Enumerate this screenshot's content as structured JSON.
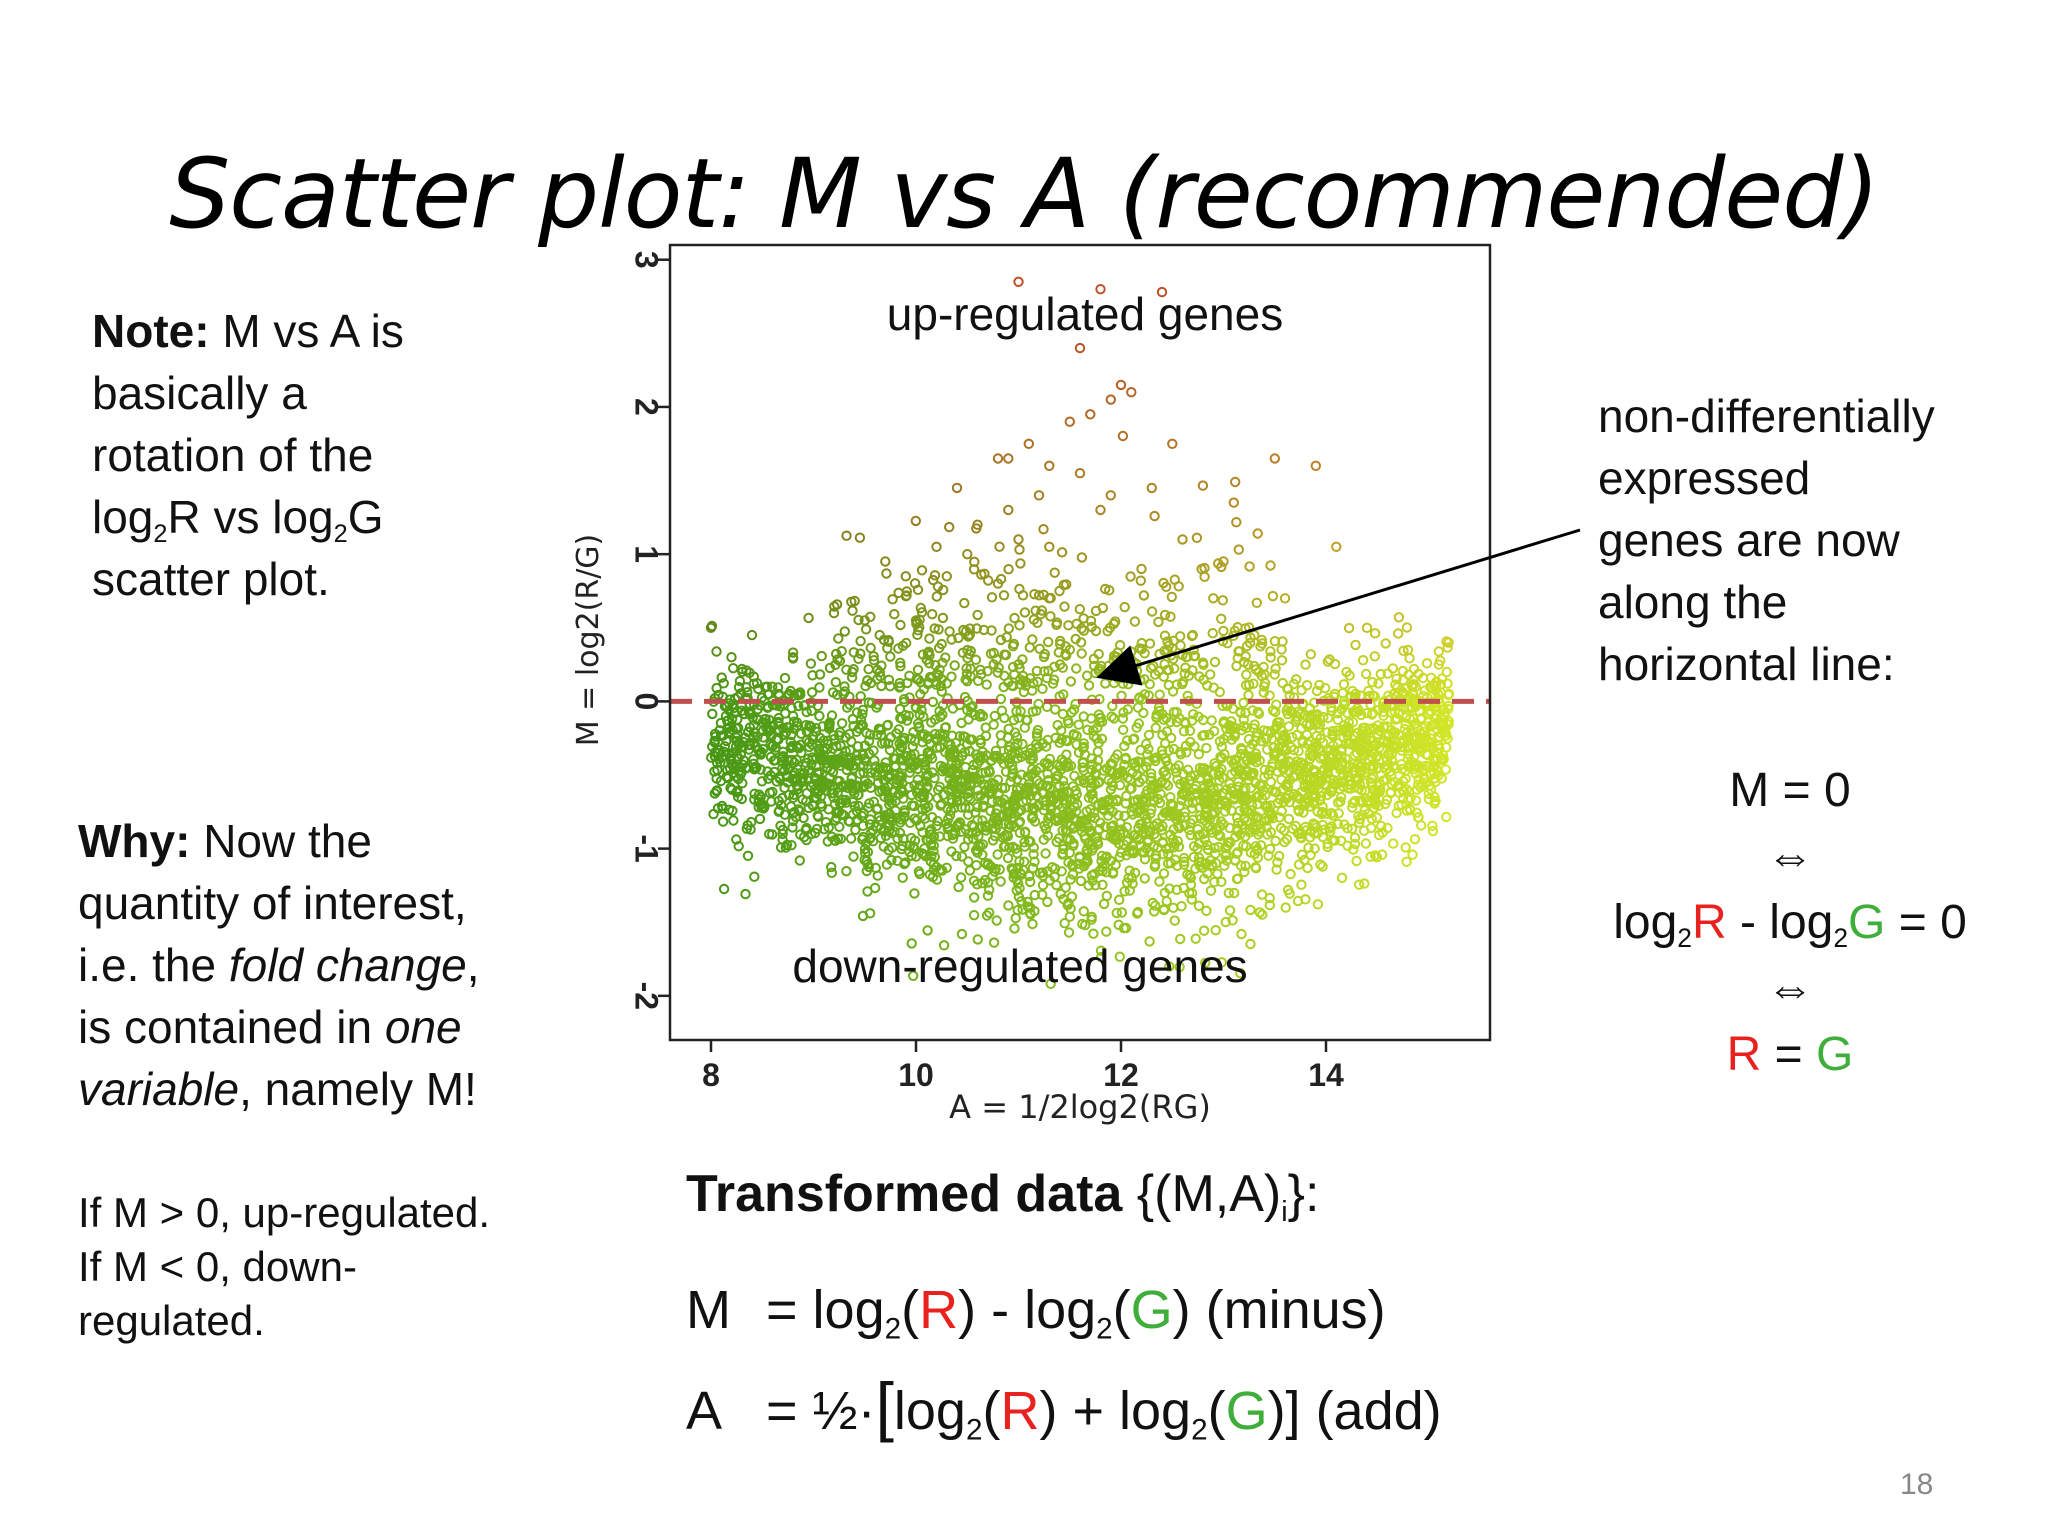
{
  "slide": {
    "title": "Scatter plot: M vs A (recommended)",
    "page_number": "18"
  },
  "note": {
    "label": "Note:",
    "line1": "M vs A is",
    "line2": "basically a",
    "line3": "rotation of the",
    "line4_a": "log",
    "line4_sub1": "2",
    "line4_b": "R vs log",
    "line4_sub2": "2",
    "line4_c": "G",
    "line5": "scatter plot."
  },
  "why": {
    "label": "Why:",
    "line1": "Now the",
    "line2": "quantity of interest,",
    "line3_a": "i.e. the ",
    "line3_em": "fold change",
    "line3_b": ",",
    "line4_a": "is contained in ",
    "line4_em": "one",
    "line5_em": "variable",
    "line5_b": ", namely M!"
  },
  "rule": {
    "line1": "If M > 0, up-regulated.",
    "line2": "If M < 0, down-",
    "line3": "regulated."
  },
  "callout": {
    "line1": "non-differentially",
    "line2": "expressed",
    "line3": "genes are now",
    "line4": "along the",
    "line5": "horizontal line:",
    "eq1": "M = 0",
    "iff": "⇔",
    "eq2_a": "log",
    "eq2_sub1": "2",
    "eq2_r": "R",
    "eq2_b": " - log",
    "eq2_sub2": "2",
    "eq2_g": "G",
    "eq2_c": " = 0",
    "eq3_r": "R",
    "eq3_eq": " = ",
    "eq3_g": "G"
  },
  "transformed": {
    "label": "Transformed data",
    "set_a": " {(M,A)",
    "set_sub": "i",
    "set_b": "}:",
    "m_lhs": "M",
    "m_a": "= log",
    "m_sub1": "2",
    "m_b": "(",
    "m_r": "R",
    "m_c": ") - log",
    "m_sub2": "2",
    "m_d": "(",
    "m_g": "G",
    "m_e": ") (minus)",
    "a_lhs": "A",
    "a_a": "= ½·",
    "a_bracket": "[",
    "a_b": "log",
    "a_sub1": "2",
    "a_c": "(",
    "a_r": "R",
    "a_d": ") + log",
    "a_sub2": "2",
    "a_e": "(",
    "a_g": "G",
    "a_f": ")] (add)"
  },
  "colors": {
    "red": "#e8231f",
    "green": "#3fae3a",
    "zero_line": "#c0504d"
  },
  "chart_data": {
    "type": "scatter",
    "xlabel": "A = 1/2log2(RG)",
    "ylabel": "M = log2(R/G)",
    "xlim": [
      7.6,
      15.6
    ],
    "ylim": [
      -2.3,
      3.1
    ],
    "xticks": [
      "8",
      "10",
      "12",
      "14"
    ],
    "yticks": [
      "-2",
      "-1",
      "0",
      "1",
      "2",
      "3"
    ],
    "reference_line": {
      "y": 0,
      "style": "dashed"
    },
    "annotations": {
      "up": "up-regulated genes",
      "down": "down-regulated genes"
    },
    "points": [
      [
        11.0,
        2.85
      ],
      [
        11.8,
        2.8
      ],
      [
        12.4,
        2.78
      ],
      [
        11.6,
        2.4
      ],
      [
        12.0,
        2.15
      ],
      [
        12.1,
        2.1
      ],
      [
        11.9,
        2.05
      ],
      [
        11.5,
        1.9
      ],
      [
        11.7,
        1.95
      ],
      [
        12.5,
        1.75
      ],
      [
        11.1,
        1.75
      ],
      [
        10.8,
        1.65
      ],
      [
        10.9,
        1.65
      ],
      [
        11.3,
        1.6
      ],
      [
        11.6,
        1.55
      ],
      [
        13.5,
        1.65
      ],
      [
        13.9,
        1.6
      ],
      [
        10.4,
        1.45
      ],
      [
        11.2,
        1.4
      ],
      [
        11.9,
        1.4
      ],
      [
        12.3,
        1.45
      ],
      [
        13.1,
        1.35
      ],
      [
        10.6,
        1.2
      ],
      [
        10.9,
        1.3
      ],
      [
        11.8,
        1.3
      ],
      [
        10.2,
        1.05
      ],
      [
        10.5,
        1.0
      ],
      [
        11.0,
        1.1
      ],
      [
        11.3,
        1.05
      ],
      [
        12.6,
        1.1
      ],
      [
        13.0,
        0.95
      ],
      [
        14.1,
        1.05
      ],
      [
        12.2,
        0.9
      ],
      [
        9.7,
        0.95
      ],
      [
        9.9,
        0.85
      ],
      [
        10.3,
        0.85
      ],
      [
        10.8,
        0.8
      ],
      [
        11.4,
        0.75
      ],
      [
        12.9,
        0.7
      ],
      [
        13.6,
        0.7
      ],
      [
        14.4,
        0.5
      ],
      [
        8.0,
        0.5
      ],
      [
        8.4,
        0.45
      ],
      [
        9.2,
        0.6
      ],
      [
        9.5,
        0.55
      ],
      [
        10.0,
        0.55
      ],
      [
        12.7,
        0.45
      ],
      [
        13.3,
        0.45
      ],
      [
        14.8,
        0.35
      ],
      [
        8.2,
        0.3
      ],
      [
        8.8,
        0.3
      ],
      [
        13.8,
        0.25
      ],
      [
        14.2,
        0.2
      ],
      [
        15.1,
        0.25
      ],
      [
        15.2,
        0.05
      ]
    ],
    "clusters": [
      {
        "desc": "dense cloud",
        "x_range": [
          8.0,
          15.2
        ],
        "m_center": "downward-curving ~-0.3 to -0.8",
        "spread": 0.35
      }
    ]
  }
}
